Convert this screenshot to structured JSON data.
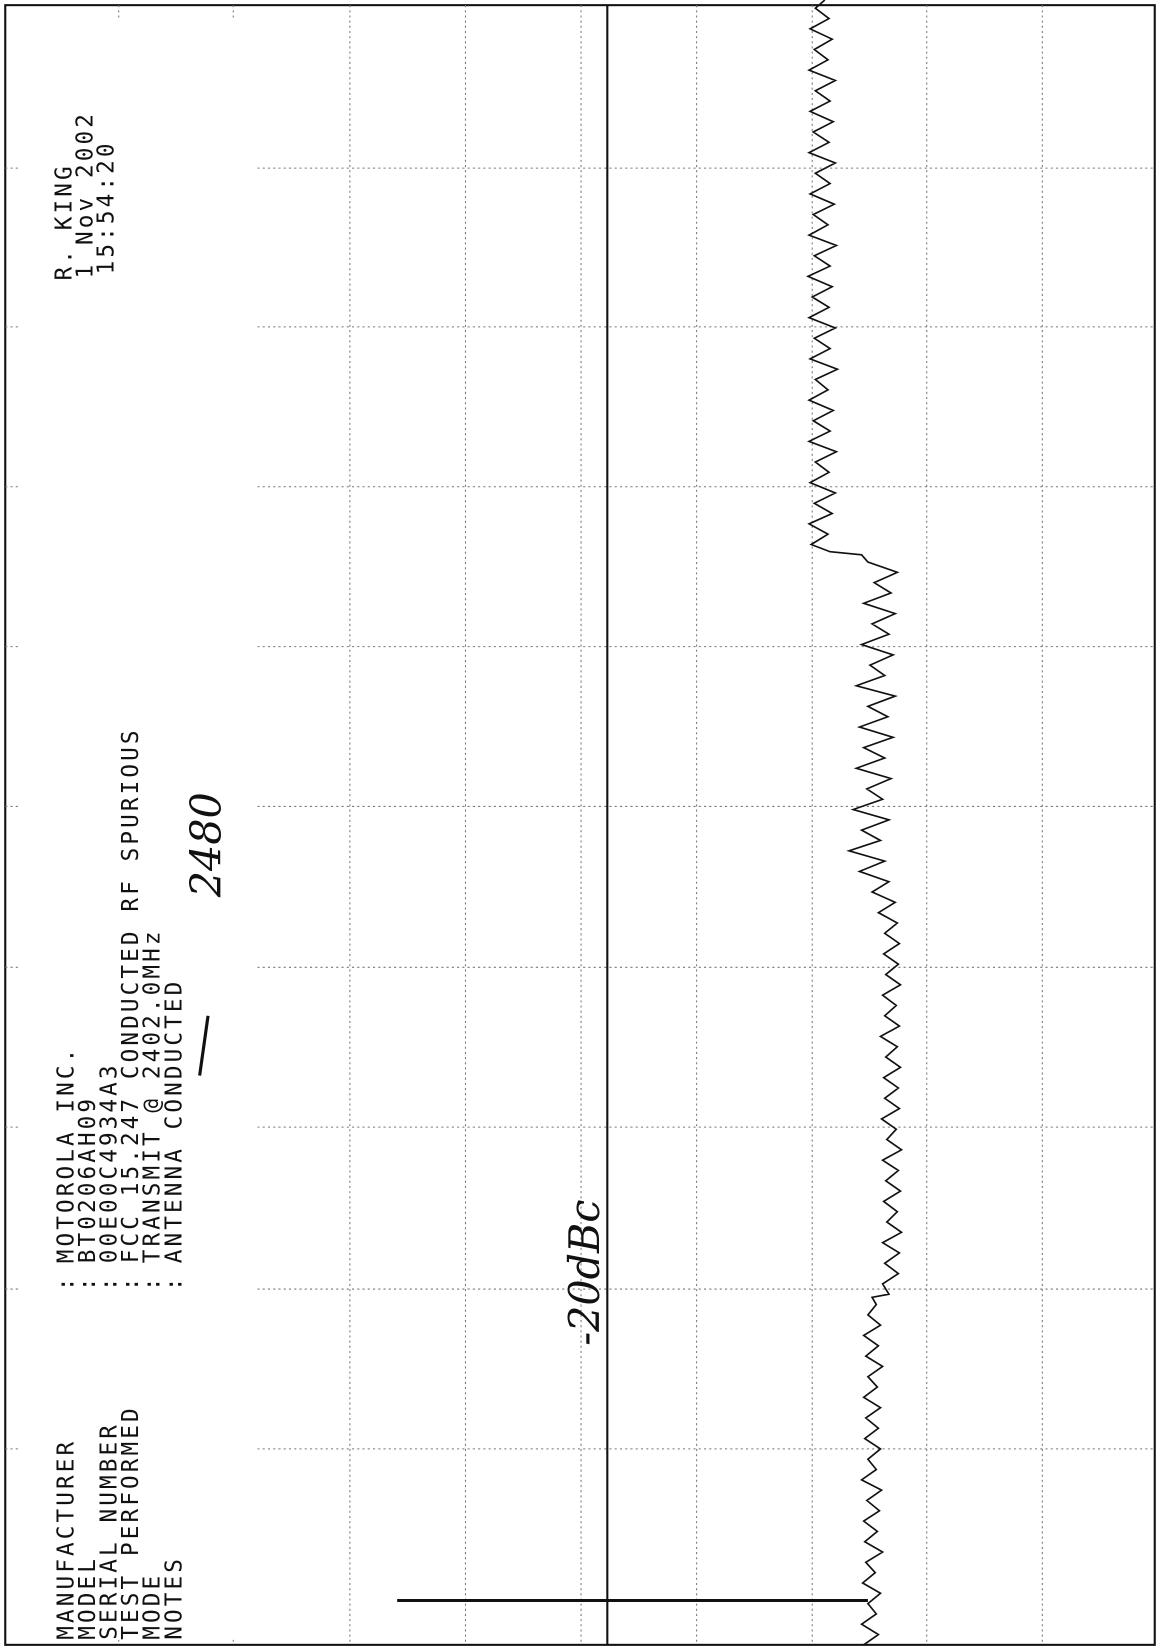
{
  "header": {
    "operator": "R. KING",
    "date": "1 Nov 2002",
    "time": "15:54:20"
  },
  "info": {
    "separator": ":",
    "rows": [
      {
        "label": "MANUFACTURER",
        "value": "MOTOROLA INC."
      },
      {
        "label": "MODEL",
        "value": "BT0206AH09"
      },
      {
        "label": "SERIAL NUMBER",
        "value": "00E00C4934A3"
      },
      {
        "label": "TEST PERFORMED",
        "value": "FCC 15.247 CONDUCTED RF SPURIOUS"
      },
      {
        "label": "MODE",
        "value": "TRANSMIT @ 2402.0MHz"
      },
      {
        "label": "NOTES",
        "value": "ANTENNA CONDUCTED"
      }
    ]
  },
  "annotations": {
    "reference": "-20dBc",
    "frequency_correction": "2480"
  }
}
